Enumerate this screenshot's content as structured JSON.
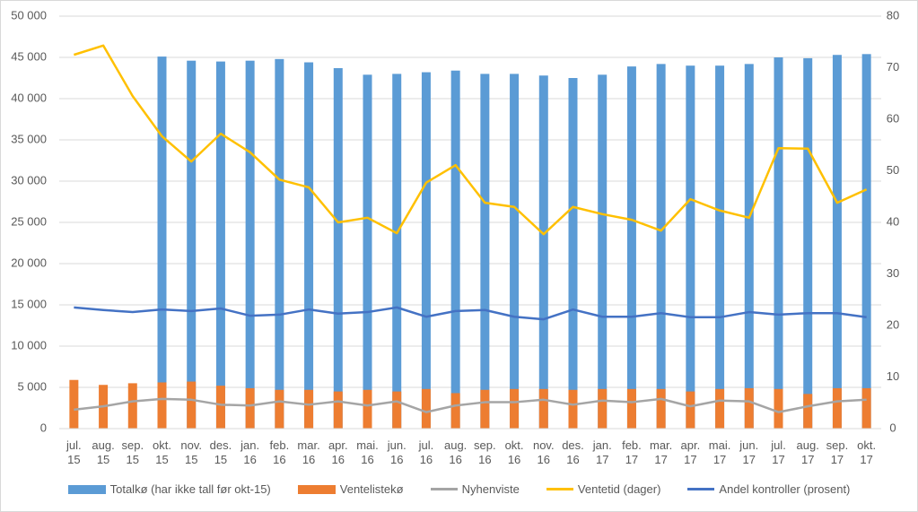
{
  "chart_data": {
    "type": "bar",
    "categories": [
      "jul. 15",
      "aug. 15",
      "sep. 15",
      "okt. 15",
      "nov. 15",
      "des. 15",
      "jan. 16",
      "feb. 16",
      "mar. 16",
      "apr. 16",
      "mai. 16",
      "jun. 16",
      "jul. 16",
      "aug. 16",
      "sep. 16",
      "okt. 16",
      "nov. 16",
      "des. 16",
      "jan. 17",
      "feb. 17",
      "mar. 17",
      "apr. 17",
      "mai. 17",
      "jun. 17",
      "jul. 17",
      "aug. 17",
      "sep. 17",
      "okt. 17"
    ],
    "series": [
      {
        "name": "Totalkø (har ikke tall før okt-15)",
        "type": "bar",
        "color": "#5b9bd5",
        "values": [
          null,
          null,
          null,
          45100,
          44600,
          44500,
          44600,
          44800,
          44400,
          43700,
          42900,
          43000,
          43200,
          43400,
          43000,
          43000,
          42800,
          42500,
          42900,
          43900,
          44200,
          44000,
          44000,
          44200,
          45000,
          44900,
          45300,
          45400
        ]
      },
      {
        "name": "Ventelistekø",
        "type": "bar",
        "color": "#ed7d31",
        "values": [
          5900,
          5300,
          5500,
          5600,
          5700,
          5200,
          4900,
          4700,
          4700,
          4500,
          4700,
          4500,
          4800,
          4300,
          4700,
          4800,
          4800,
          4700,
          4800,
          4800,
          4800,
          4500,
          4800,
          4900,
          4800,
          4200,
          4900,
          4900
        ]
      },
      {
        "name": "Nyhenviste",
        "type": "line",
        "color": "#a5a5a5",
        "values": [
          2300,
          2700,
          3300,
          3600,
          3500,
          2900,
          2800,
          3300,
          2900,
          3300,
          2800,
          3300,
          2000,
          2800,
          3200,
          3200,
          3500,
          2900,
          3400,
          3200,
          3600,
          2700,
          3400,
          3300,
          2000,
          2700,
          3300,
          3500
        ]
      },
      {
        "name": "Ventetid (dager)",
        "type": "line",
        "axis": "y2",
        "color": "#ffc000",
        "values": [
          72.5,
          74.3,
          64.5,
          56.7,
          51.8,
          57.2,
          53.6,
          48.3,
          46.8,
          40,
          40.9,
          37.9,
          47.7,
          51.1,
          43.8,
          43,
          37.7,
          43,
          41.6,
          40.5,
          38.4,
          44.5,
          42.3,
          40.9,
          54.4,
          54.3,
          43.8,
          46.4
        ]
      },
      {
        "name": "Andel kontroller (prosent)",
        "type": "line",
        "axis": "y2",
        "color": "#4472c4",
        "values": [
          23.5,
          23,
          22.6,
          23.1,
          22.8,
          23.3,
          21.9,
          22.1,
          23.1,
          22.3,
          22.6,
          23.5,
          21.7,
          22.8,
          23,
          21.7,
          21.2,
          23.1,
          21.7,
          21.7,
          22.4,
          21.6,
          21.6,
          22.6,
          22.1,
          22.4,
          22.4,
          21.6
        ]
      }
    ],
    "ylim": [
      0,
      50000
    ],
    "yticks": [
      0,
      {
        "value": 5000,
        "label": "5 000"
      },
      {
        "value": 10000,
        "label": "10 000"
      },
      {
        "value": 15000,
        "label": "15 000"
      },
      {
        "value": 20000,
        "label": "20 000"
      },
      {
        "value": 25000,
        "label": "25 000"
      },
      {
        "value": 30000,
        "label": "30 000"
      },
      {
        "value": 35000,
        "label": "35 000"
      },
      {
        "value": 40000,
        "label": "40 000"
      },
      {
        "value": 45000,
        "label": "45 000"
      },
      {
        "value": 50000,
        "label": "50 000"
      }
    ],
    "y2lim": [
      0,
      80
    ],
    "y2ticks": [
      0,
      10,
      20,
      30,
      40,
      50,
      60,
      70,
      80
    ],
    "grid": true,
    "legend": "bottom"
  }
}
